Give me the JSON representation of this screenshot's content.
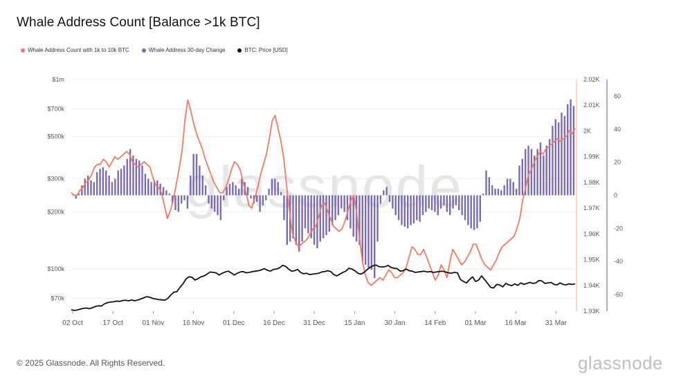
{
  "title": "Whale Address Count [Balance >1k BTC]",
  "footer": "© 2025 Glassnode. All Rights Reserved.",
  "brand": "glassnode",
  "watermark": "glassnode",
  "colors": {
    "line_count": "#f07a63",
    "bars_change": "#7b6cb0",
    "line_price": "#111111",
    "grid": "#eeeeee",
    "axis_text": "#555555"
  },
  "legend": [
    {
      "label": "Whale Address Count with 1k to 10k BTC",
      "color": "#f07a63"
    },
    {
      "label": "Whale Address 30-day Change",
      "color": "#7b6cb0"
    },
    {
      "label": "BTC: Price [USD]",
      "color": "#111111"
    }
  ],
  "chart_data": {
    "type": "line",
    "x_ticks": [
      "02 Oct",
      "17 Oct",
      "01 Nov",
      "16 Nov",
      "01 Dec",
      "16 Dec",
      "31 Dec",
      "15 Jan",
      "30 Jan",
      "14 Feb",
      "01 Mar",
      "16 Mar",
      "31 Mar"
    ],
    "price_axis": {
      "scale": "log",
      "ticks": [
        "$1m",
        "$700k",
        "$500k",
        "$300k",
        "$200k",
        "$100k",
        "$70k"
      ],
      "tick_values": [
        1000000,
        700000,
        500000,
        300000,
        200000,
        100000,
        70000
      ]
    },
    "count_axis": {
      "ticks": [
        "2.02K",
        "2.01K",
        "2K",
        "1.99K",
        "1.98K",
        "1.97K",
        "1.96K",
        "1.95K",
        "1.94K",
        "1.93K"
      ],
      "range": [
        1930,
        2020
      ]
    },
    "change_axis": {
      "ticks": [
        "60",
        "40",
        "20",
        "0",
        "-20",
        "-40",
        "-60"
      ],
      "range": [
        -70,
        70
      ]
    },
    "series": [
      {
        "name": "Whale Address Count with 1k to 10k BTC",
        "axis": "count",
        "values": [
          1976,
          1975,
          1975,
          1977,
          1978,
          1980,
          1981,
          1983,
          1986,
          1987,
          1987,
          1989,
          1988,
          1986,
          1988,
          1990,
          1989,
          1990,
          1991,
          1992,
          1991,
          1988,
          1987,
          1986,
          1987,
          1988,
          1987,
          1986,
          1982,
          1979,
          1978,
          1976,
          1971,
          1966,
          1969,
          1973,
          1979,
          1985,
          1992,
          2004,
          2012,
          2008,
          2003,
          1999,
          1996,
          1993,
          1989,
          1986,
          1983,
          1980,
          1978,
          1976,
          1976,
          1978,
          1981,
          1985,
          1988,
          1987,
          1985,
          1980,
          1976,
          1971,
          1970,
          1974,
          1978,
          1983,
          1987,
          1991,
          1997,
          2004,
          2006,
          2001,
          1996,
          1989,
          1978,
          1968,
          1960,
          1957,
          1955,
          1956,
          1957,
          1958,
          1960,
          1962,
          1963,
          1967,
          1971,
          1972,
          1969,
          1966,
          1963,
          1962,
          1961,
          1962,
          1965,
          1969,
          1973,
          1975,
          1968,
          1958,
          1949,
          1944,
          1941,
          1940,
          1941,
          1942,
          1943,
          1942,
          1944,
          1946,
          1945,
          1943,
          1943,
          1944,
          1945,
          1947,
          1951,
          1955,
          1954,
          1952,
          1952,
          1954,
          1951,
          1948,
          1945,
          1942,
          1944,
          1948,
          1946,
          1943,
          1949,
          1954,
          1952,
          1950,
          1948,
          1949,
          1951,
          1953,
          1956,
          1956,
          1953,
          1950,
          1948,
          1947,
          1946,
          1948,
          1950,
          1953,
          1955,
          1956,
          1957,
          1958,
          1959,
          1962,
          1966,
          1973,
          1978,
          1983,
          1985,
          1988,
          1990,
          1992,
          1991,
          1993,
          1994,
          1995,
          1996,
          1997,
          1996,
          1997,
          1998,
          2000,
          1999,
          2001
        ]
      },
      {
        "name": "Whale Address 30-day Change",
        "axis": "change",
        "type": "bar",
        "values": [
          0,
          -2,
          1,
          6,
          10,
          12,
          9,
          8,
          14,
          16,
          17,
          15,
          12,
          8,
          10,
          15,
          16,
          18,
          22,
          28,
          24,
          22,
          21,
          18,
          13,
          10,
          8,
          9,
          9,
          7,
          5,
          3,
          1,
          -5,
          -9,
          -10,
          -5,
          -3,
          -8,
          12,
          25,
          25,
          18,
          12,
          6,
          -5,
          -8,
          -10,
          -12,
          -15,
          -3,
          5,
          7,
          8,
          6,
          4,
          10,
          8,
          5,
          -2,
          -5,
          -4,
          -10,
          -6,
          -3,
          4,
          10,
          10,
          8,
          2,
          -15,
          -30,
          -28,
          -26,
          -30,
          -34,
          -28,
          -20,
          -23,
          -26,
          -30,
          -32,
          -28,
          -26,
          -24,
          -22,
          -18,
          -15,
          -12,
          -8,
          -10,
          -15,
          -20,
          -25,
          -28,
          -30,
          -40,
          -42,
          -44,
          -45,
          -50,
          -28,
          -5,
          3,
          5,
          -4,
          -8,
          -12,
          -15,
          -18,
          -19,
          -20,
          -18,
          -17,
          -15,
          -16,
          -12,
          -10,
          -8,
          -9,
          -10,
          -12,
          -8,
          -6,
          -10,
          -12,
          -8,
          -6,
          -9,
          -12,
          -15,
          -18,
          -20,
          -21,
          -20,
          -16,
          1,
          15,
          11,
          6,
          4,
          4,
          3,
          6,
          10,
          10,
          8,
          4,
          18,
          22,
          28,
          30,
          28,
          24,
          28,
          32,
          24,
          30,
          34,
          42,
          46,
          44,
          50,
          48,
          55,
          58,
          54
        ]
      },
      {
        "name": "BTC: Price [USD]",
        "axis": "price",
        "values": [
          61000,
          60500,
          60800,
          61500,
          62000,
          62300,
          61800,
          62500,
          63500,
          64000,
          63800,
          65500,
          66500,
          67000,
          67200,
          67800,
          67500,
          68200,
          68500,
          68000,
          68700,
          68000,
          68600,
          69500,
          70500,
          71500,
          71000,
          70000,
          69500,
          69000,
          68800,
          68500,
          70000,
          73000,
          75500,
          76000,
          80000,
          83500,
          88500,
          91000,
          90500,
          87500,
          89000,
          91000,
          92000,
          94000,
          96500,
          96000,
          95500,
          93000,
          95000,
          96500,
          97500,
          95500,
          93000,
          95000,
          96500,
          97000,
          95500,
          96000,
          96800,
          97500,
          98000,
          99000,
          100500,
          98500,
          97500,
          99500,
          100000,
          101500,
          104500,
          103500,
          100000,
          97500,
          98000,
          99500,
          96000,
          94500,
          95000,
          93500,
          94000,
          94500,
          95000,
          96500,
          97000,
          98000,
          97000,
          93500,
          92000,
          94000,
          96000,
          97500,
          101000,
          100000,
          98000,
          95000,
          94000,
          96000,
          99000,
          102000,
          104000,
          105000,
          103000,
          102500,
          103000,
          104500,
          102000,
          101000,
          100500,
          97500,
          98000,
          100000,
          98000,
          97500,
          96000,
          96500,
          97000,
          97500,
          96500,
          97000,
          96000,
          96500,
          97000,
          97500,
          96500,
          95500,
          95000,
          96000,
          95500,
          88000,
          86000,
          84500,
          88000,
          91000,
          86000,
          87500,
          92000,
          88000,
          84000,
          80000,
          79500,
          83000,
          82500,
          80500,
          84000,
          82500,
          81800,
          83500,
          82000,
          84500,
          83000,
          84000,
          85000,
          84000,
          84500,
          87000,
          86500,
          84000,
          84500,
          85000,
          83000,
          82500,
          84500,
          83000,
          82500,
          83500,
          83000,
          83500
        ]
      }
    ],
    "grid": "horizontal",
    "legend_position": "top-left"
  }
}
